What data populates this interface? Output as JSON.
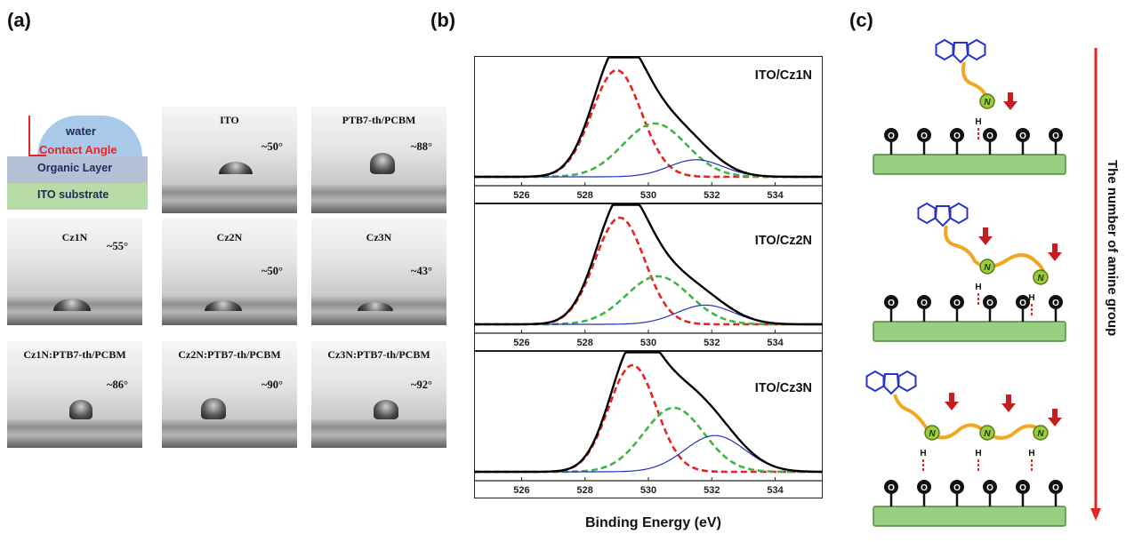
{
  "panels": {
    "a": "(a)",
    "b": "(b)",
    "c": "(c)"
  },
  "schematic": {
    "water": "water",
    "contact_angle": "Contact Angle",
    "organic_layer": "Organic Layer",
    "ito_substrate": "ITO substrate"
  },
  "photos": [
    {
      "title": "ITO",
      "angle": "~50°",
      "contact_angle_deg": 50
    },
    {
      "title": "PTB7-th/PCBM",
      "angle": "~88°",
      "contact_angle_deg": 88
    },
    {
      "title": "Cz1N",
      "angle": "~55°",
      "contact_angle_deg": 55
    },
    {
      "title": "Cz2N",
      "angle": "~50°",
      "contact_angle_deg": 50
    },
    {
      "title": "Cz3N",
      "angle": "~43°",
      "contact_angle_deg": 43
    },
    {
      "title": "Cz1N:PTB7-th/PCBM",
      "angle": "~86°",
      "contact_angle_deg": 86
    },
    {
      "title": "Cz2N:PTB7-th/PCBM",
      "angle": "~90°",
      "contact_angle_deg": 90
    },
    {
      "title": "Cz3N:PTB7-th/PCBM",
      "angle": "~92°",
      "contact_angle_deg": 92
    }
  ],
  "chart_data": [
    {
      "type": "line",
      "label": "ITO/Cz1N",
      "xlabel": "Binding Energy (eV)",
      "xlim": [
        524.5,
        535.5
      ],
      "xticks": [
        526,
        528,
        530,
        532,
        534
      ],
      "peaks": [
        {
          "center": 529.0,
          "amplitude": 1.0,
          "width": 0.78,
          "color": "#e8231f",
          "style": "dashed"
        },
        {
          "center": 530.2,
          "amplitude": 0.5,
          "width": 1.0,
          "color": "#3fb547",
          "style": "dashed"
        },
        {
          "center": 531.5,
          "amplitude": 0.16,
          "width": 0.85,
          "color": "#2430b8",
          "style": "solid"
        }
      ],
      "envelope_color": "#000000"
    },
    {
      "type": "line",
      "label": "ITO/Cz2N",
      "xlabel": "Binding Energy (eV)",
      "xlim": [
        524.5,
        535.5
      ],
      "xticks": [
        526,
        528,
        530,
        532,
        534
      ],
      "peaks": [
        {
          "center": 529.1,
          "amplitude": 1.0,
          "width": 0.78,
          "color": "#e8231f",
          "style": "dashed"
        },
        {
          "center": 530.3,
          "amplitude": 0.45,
          "width": 1.0,
          "color": "#3fb547",
          "style": "dashed"
        },
        {
          "center": 531.8,
          "amplitude": 0.18,
          "width": 0.9,
          "color": "#2430b8",
          "style": "solid"
        }
      ],
      "envelope_color": "#000000"
    },
    {
      "type": "line",
      "label": "ITO/Cz3N",
      "xlabel": "Binding Energy (eV)",
      "xlim": [
        524.5,
        535.5
      ],
      "xticks": [
        526,
        528,
        530,
        532,
        534
      ],
      "peaks": [
        {
          "center": 529.5,
          "amplitude": 1.0,
          "width": 0.75,
          "color": "#e8231f",
          "style": "dashed"
        },
        {
          "center": 530.8,
          "amplitude": 0.6,
          "width": 0.95,
          "color": "#3fb547",
          "style": "dashed"
        },
        {
          "center": 532.1,
          "amplitude": 0.34,
          "width": 0.95,
          "color": "#2430b8",
          "style": "solid"
        }
      ],
      "envelope_color": "#000000"
    }
  ],
  "x_axis_title": "Binding Energy (eV)",
  "diagram": {
    "vertical_label": "The number of amine group",
    "oxygen_label": "O",
    "hydrogen_label": "H",
    "nitrogen_label": "N",
    "rows": [
      {
        "amine_count": 1
      },
      {
        "amine_count": 2
      },
      {
        "amine_count": 3
      }
    ]
  }
}
